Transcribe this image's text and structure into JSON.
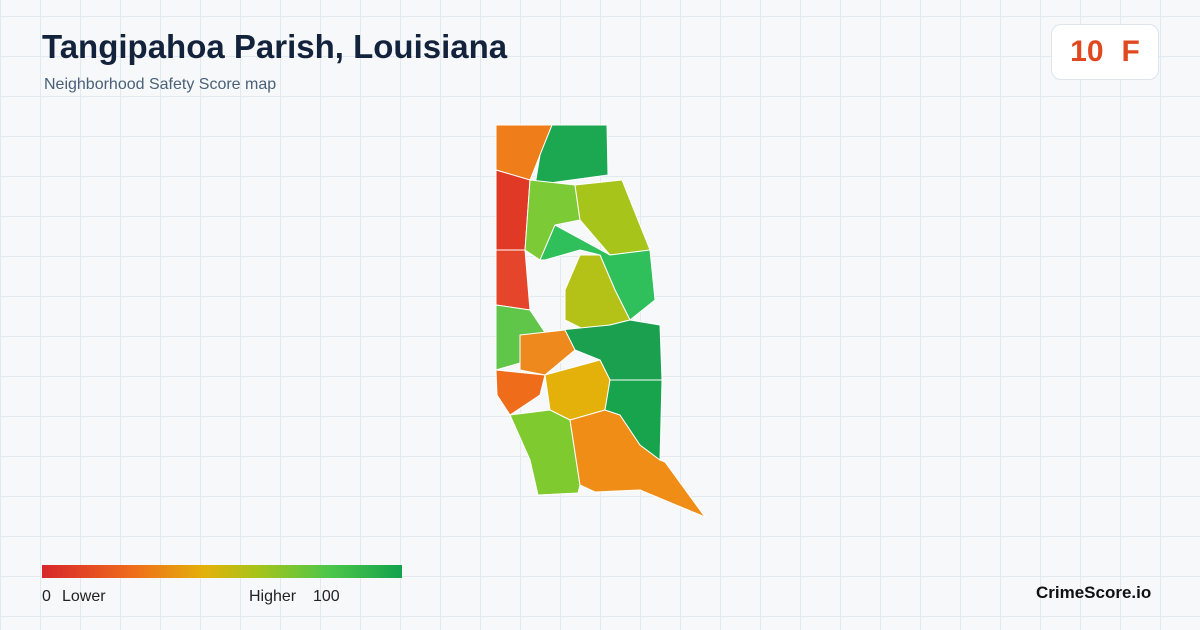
{
  "header": {
    "title": "Tangipahoa Parish, Louisiana",
    "subtitle": "Neighborhood Safety Score map"
  },
  "score": {
    "value": 10,
    "grade": "F"
  },
  "legend": {
    "min": 0,
    "min_label": "Lower",
    "max_label": "Higher",
    "max": 100
  },
  "brand": "CrimeScore.io"
}
